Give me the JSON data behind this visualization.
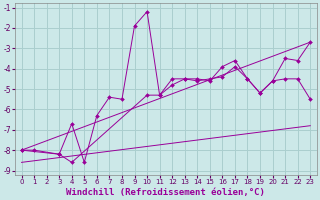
{
  "background_color": "#cce8e8",
  "grid_color": "#aacece",
  "line_color": "#990099",
  "xlim": [
    -0.5,
    23.5
  ],
  "ylim": [
    -9.2,
    -0.8
  ],
  "xlabel": "Windchill (Refroidissement éolien,°C)",
  "xlabel_fontsize": 6.5,
  "tick_fontsize": 5.5,
  "xticks": [
    0,
    1,
    2,
    3,
    4,
    5,
    6,
    7,
    8,
    9,
    10,
    11,
    12,
    13,
    14,
    15,
    16,
    17,
    18,
    19,
    20,
    21,
    22,
    23
  ],
  "yticks": [
    -9,
    -8,
    -7,
    -6,
    -5,
    -4,
    -3,
    -2,
    -1
  ],
  "series": [
    {
      "x": [
        0,
        1,
        3,
        4,
        5,
        6,
        7,
        8,
        9,
        10,
        11,
        12,
        13,
        14,
        15,
        16,
        17,
        18,
        19,
        20,
        21,
        22,
        23
      ],
      "y": [
        -8.0,
        -8.0,
        -8.2,
        -6.7,
        -8.6,
        -6.3,
        -5.4,
        -5.5,
        -1.9,
        -1.2,
        -5.3,
        -4.5,
        -4.5,
        -4.5,
        -4.6,
        -3.9,
        -3.6,
        -4.5,
        -5.2,
        -4.6,
        -3.5,
        -3.6,
        -2.7
      ],
      "has_markers": true
    },
    {
      "x": [
        0,
        3,
        4,
        10,
        11,
        12,
        13,
        14,
        15,
        16,
        17,
        18,
        19,
        20,
        21,
        22,
        23
      ],
      "y": [
        -8.0,
        -8.2,
        -8.6,
        -5.3,
        -5.3,
        -4.8,
        -4.5,
        -4.6,
        -4.5,
        -4.4,
        -3.9,
        -4.5,
        -5.2,
        -4.6,
        -4.5,
        -4.5,
        -5.5
      ],
      "has_markers": true
    },
    {
      "x": [
        0,
        23
      ],
      "y": [
        -8.0,
        -2.7
      ],
      "has_markers": false
    },
    {
      "x": [
        0,
        23
      ],
      "y": [
        -8.6,
        -6.8
      ],
      "has_markers": false
    }
  ]
}
